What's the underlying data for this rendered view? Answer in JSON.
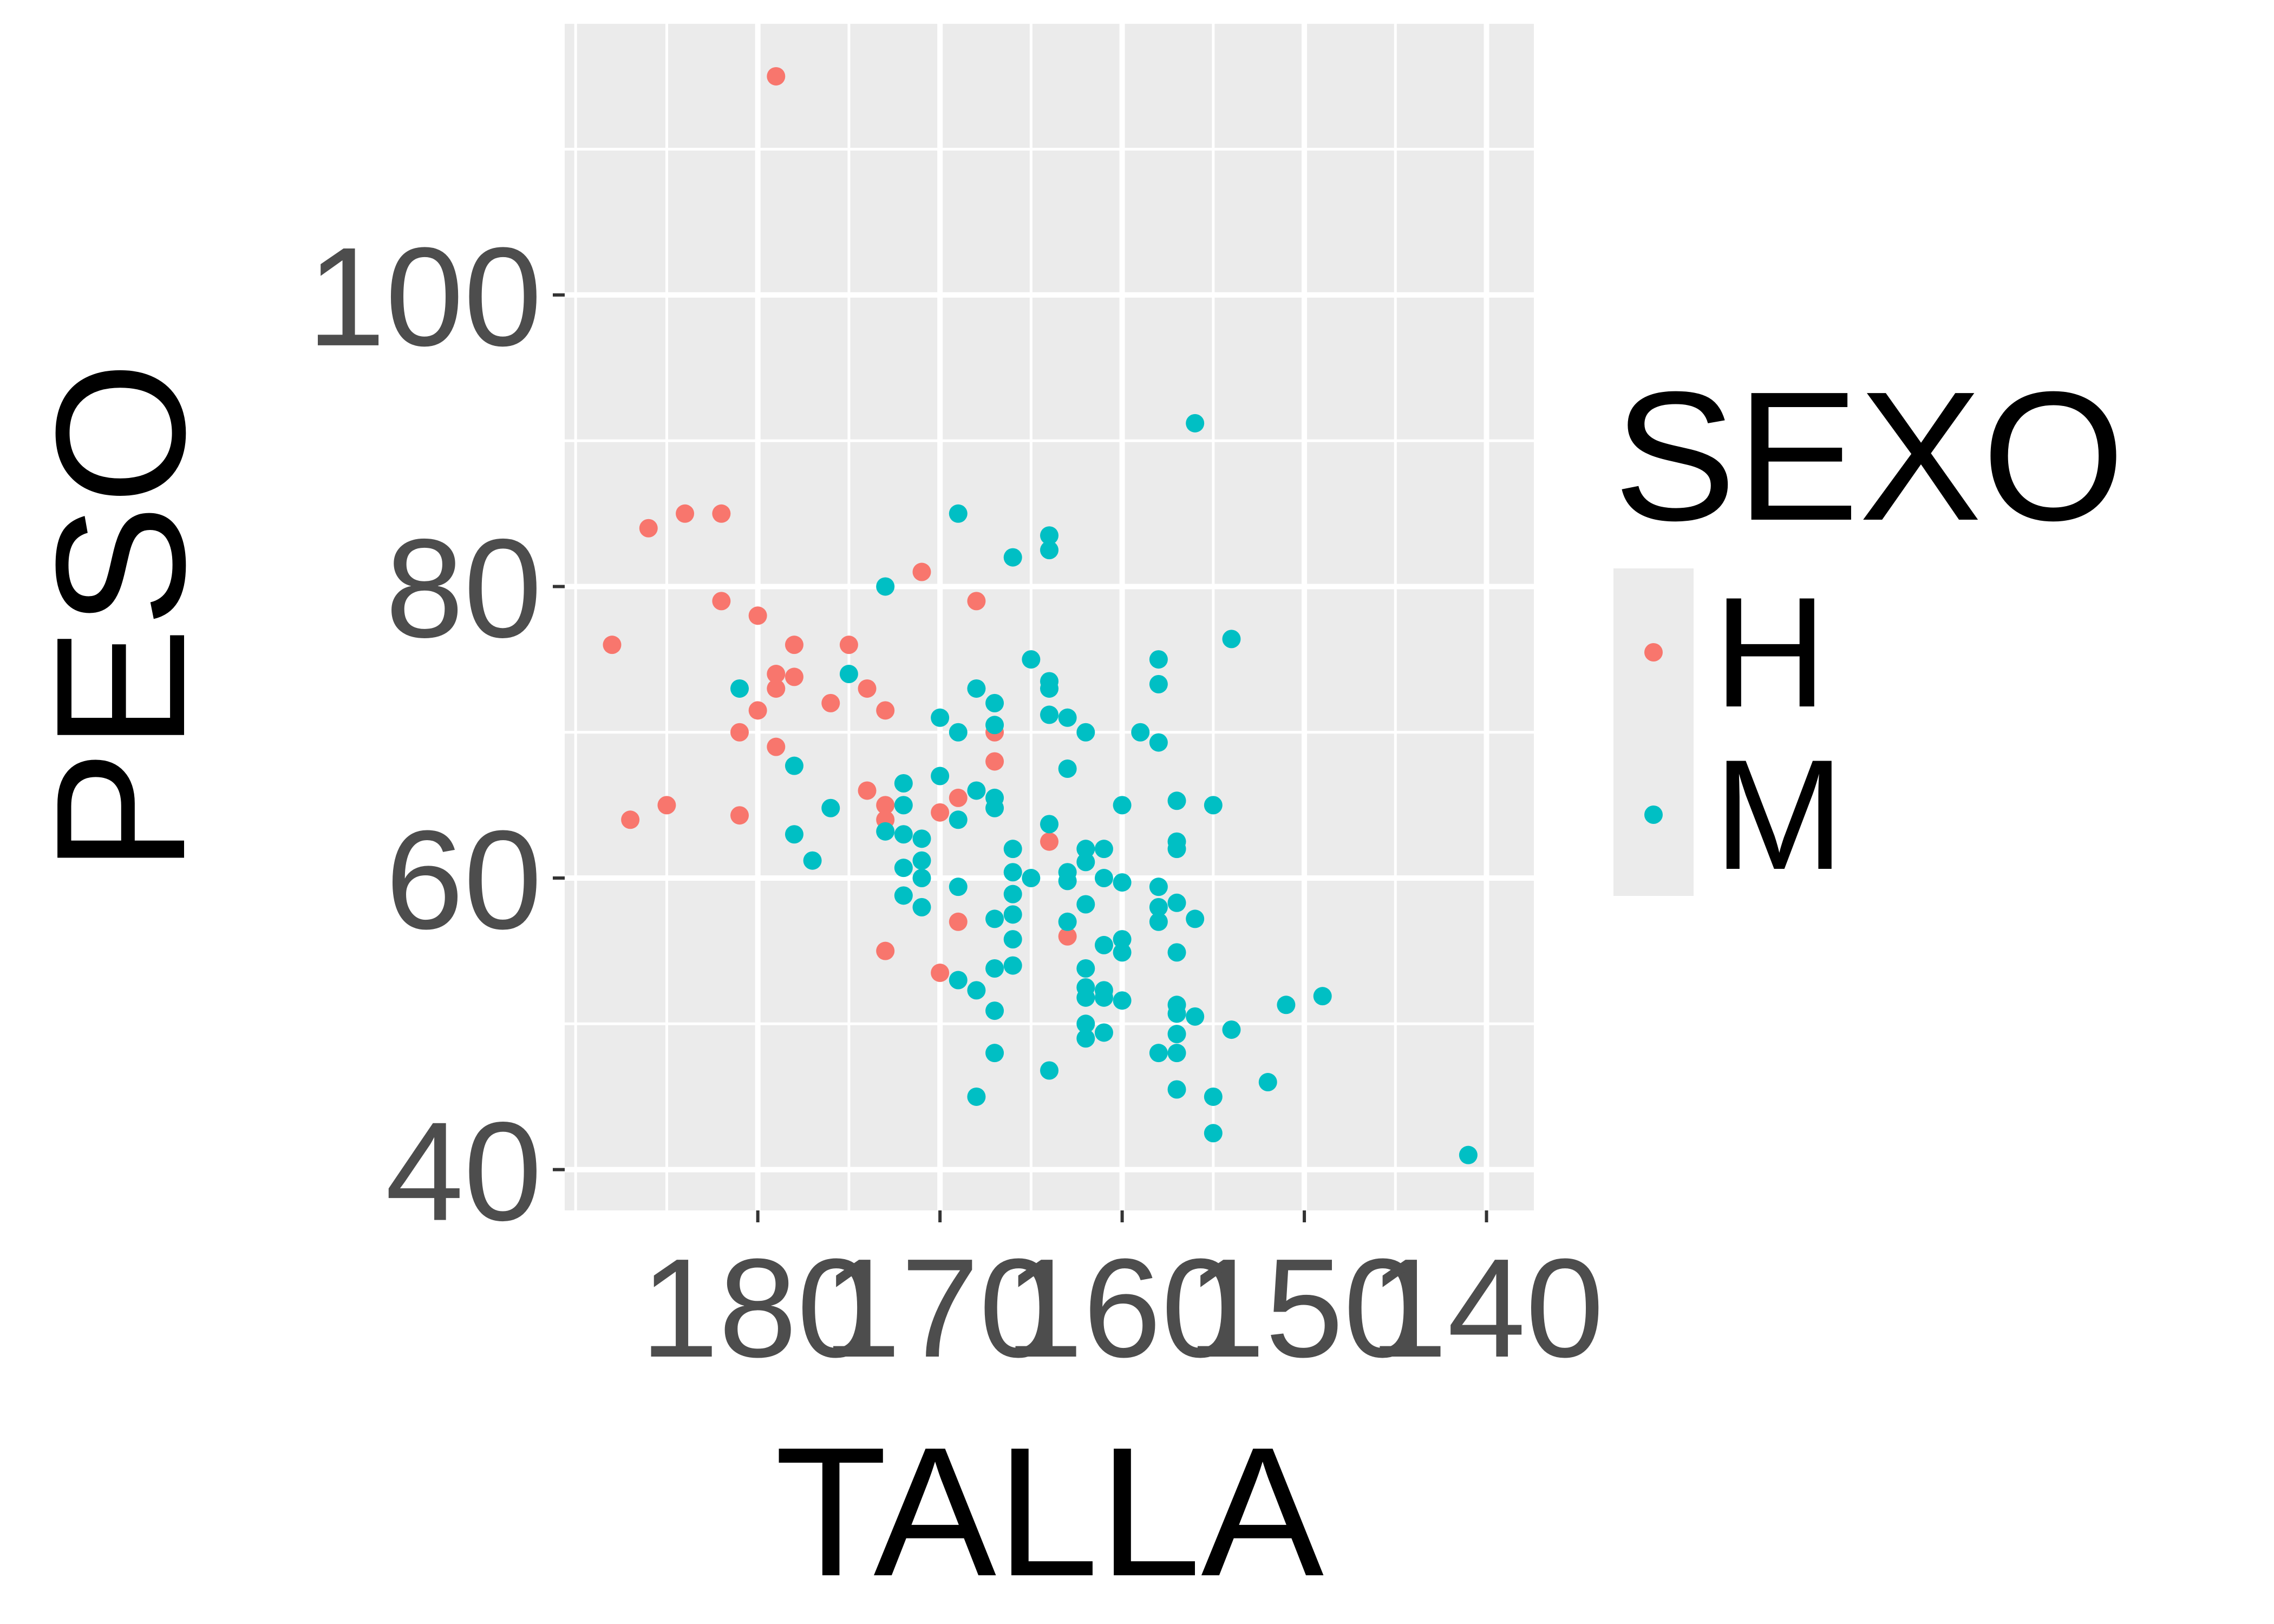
{
  "chart_data": {
    "type": "scatter",
    "xlabel": "TALLA",
    "ylabel": "PESO",
    "x_reversed": true,
    "xlim": [
      137.4,
      190.6
    ],
    "ylim": [
      37.2,
      118.6
    ],
    "x_ticks": [
      180,
      170,
      160,
      150,
      140
    ],
    "x_tick_labels": [
      "180",
      "170",
      "160",
      "150",
      "140"
    ],
    "y_ticks": [
      40,
      60,
      80,
      100
    ],
    "y_tick_labels": [
      "40",
      "60",
      "80",
      "100"
    ],
    "grid": true,
    "legend": {
      "title": "SEXO",
      "position": "right",
      "entries": [
        {
          "label": "H",
          "color": "#F8766D"
        },
        {
          "label": "M",
          "color": "#00BFC4"
        }
      ]
    },
    "series": [
      {
        "name": "H",
        "color": "#F8766D",
        "points": [
          [
            179,
            115
          ],
          [
            188,
            76
          ],
          [
            187,
            64
          ],
          [
            186,
            84
          ],
          [
            185,
            65
          ],
          [
            184,
            85
          ],
          [
            182,
            85
          ],
          [
            182,
            79
          ],
          [
            181,
            70
          ],
          [
            181,
            64.3
          ],
          [
            180,
            78
          ],
          [
            180,
            71.5
          ],
          [
            179,
            74
          ],
          [
            179,
            73
          ],
          [
            179,
            69
          ],
          [
            178,
            76
          ],
          [
            178,
            73.8
          ],
          [
            176,
            72
          ],
          [
            175,
            76
          ],
          [
            174,
            73
          ],
          [
            174,
            66
          ],
          [
            173,
            71.5
          ],
          [
            173,
            65
          ],
          [
            173,
            64
          ],
          [
            173,
            55
          ],
          [
            171,
            81
          ],
          [
            170,
            64.5
          ],
          [
            170,
            53.5
          ],
          [
            169,
            65.5
          ],
          [
            169,
            57
          ],
          [
            168,
            79
          ],
          [
            167,
            70
          ],
          [
            167,
            68
          ],
          [
            164,
            62.5
          ],
          [
            163,
            56
          ]
        ]
      },
      {
        "name": "M",
        "color": "#00BFC4",
        "points": [
          [
            181,
            73
          ],
          [
            178,
            67.7
          ],
          [
            178,
            63
          ],
          [
            177,
            61.2
          ],
          [
            176,
            64.8
          ],
          [
            175,
            74
          ],
          [
            173,
            80
          ],
          [
            173,
            63.2
          ],
          [
            172,
            66.5
          ],
          [
            172,
            65
          ],
          [
            172,
            63
          ],
          [
            172,
            60.7
          ],
          [
            172,
            58.8
          ],
          [
            171,
            62.7
          ],
          [
            171,
            61.2
          ],
          [
            171,
            60
          ],
          [
            171,
            58
          ],
          [
            170,
            71
          ],
          [
            170,
            67
          ],
          [
            169,
            85
          ],
          [
            169,
            70
          ],
          [
            169,
            64
          ],
          [
            169,
            59.4
          ],
          [
            169,
            53
          ],
          [
            168,
            73
          ],
          [
            168,
            66
          ],
          [
            168,
            52.3
          ],
          [
            168,
            45
          ],
          [
            167,
            72
          ],
          [
            167,
            70.5
          ],
          [
            167,
            65.5
          ],
          [
            167,
            64.8
          ],
          [
            167,
            57.2
          ],
          [
            167,
            53.8
          ],
          [
            167,
            50.9
          ],
          [
            167,
            48
          ],
          [
            166,
            82
          ],
          [
            166,
            62
          ],
          [
            166,
            60.4
          ],
          [
            166,
            58.9
          ],
          [
            166,
            57.5
          ],
          [
            166,
            55.8
          ],
          [
            166,
            54
          ],
          [
            165,
            75
          ],
          [
            165,
            60
          ],
          [
            164,
            83.5
          ],
          [
            164,
            82.5
          ],
          [
            164,
            73.5
          ],
          [
            164,
            73
          ],
          [
            164,
            71.2
          ],
          [
            164,
            63.7
          ],
          [
            164,
            46.8
          ],
          [
            163,
            71
          ],
          [
            163,
            67.5
          ],
          [
            163,
            60.4
          ],
          [
            163,
            59.8
          ],
          [
            163,
            57
          ],
          [
            162,
            70
          ],
          [
            162,
            62
          ],
          [
            162,
            61.1
          ],
          [
            162,
            58.2
          ],
          [
            162,
            53.8
          ],
          [
            162,
            52.5
          ],
          [
            162,
            51.8
          ],
          [
            162,
            50
          ],
          [
            162,
            49
          ],
          [
            161,
            62
          ],
          [
            161,
            60
          ],
          [
            161,
            55.4
          ],
          [
            161,
            52.3
          ],
          [
            161,
            51.8
          ],
          [
            161,
            49.4
          ],
          [
            160,
            65
          ],
          [
            160,
            59.7
          ],
          [
            160,
            55.8
          ],
          [
            160,
            54.9
          ],
          [
            160,
            51.6
          ],
          [
            159,
            70
          ],
          [
            158,
            75
          ],
          [
            158,
            73.3
          ],
          [
            158,
            69.3
          ],
          [
            158,
            59.4
          ],
          [
            158,
            58
          ],
          [
            158,
            57
          ],
          [
            158,
            48
          ],
          [
            157,
            65.3
          ],
          [
            157,
            62.5
          ],
          [
            157,
            62
          ],
          [
            157,
            58.3
          ],
          [
            157,
            54.9
          ],
          [
            157,
            51.3
          ],
          [
            157,
            50.7
          ],
          [
            157,
            49.3
          ],
          [
            157,
            48
          ],
          [
            157,
            45.5
          ],
          [
            156,
            91.2
          ],
          [
            156,
            57.2
          ],
          [
            156,
            50.5
          ],
          [
            155,
            65
          ],
          [
            155,
            45
          ],
          [
            155,
            42.5
          ],
          [
            154,
            76.4
          ],
          [
            154,
            49.6
          ],
          [
            152,
            46
          ],
          [
            151,
            51.3
          ],
          [
            149,
            51.9
          ],
          [
            141,
            41
          ]
        ]
      }
    ]
  }
}
